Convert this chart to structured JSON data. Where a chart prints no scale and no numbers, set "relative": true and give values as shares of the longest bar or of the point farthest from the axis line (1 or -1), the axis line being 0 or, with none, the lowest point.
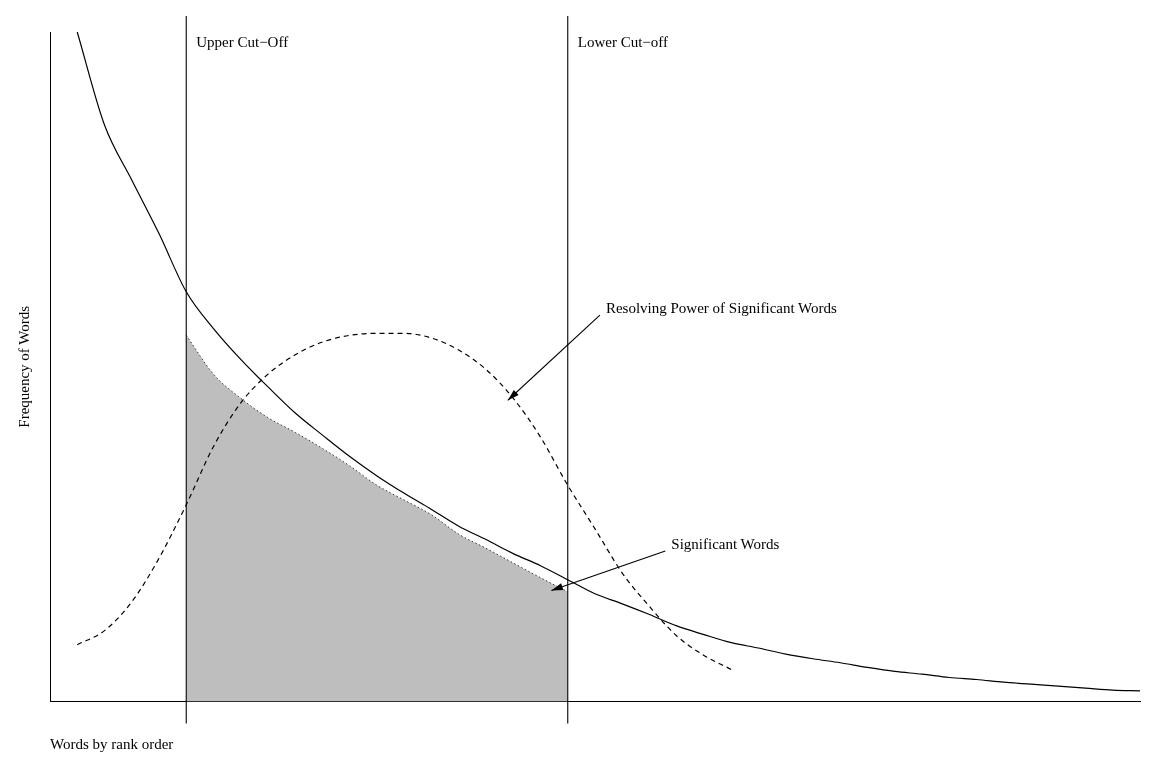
{
  "chart_data": {
    "type": "line",
    "relative": true,
    "xlabel": "Words by rank order",
    "ylabel": "Frequency of Words",
    "grid": false,
    "marker": "none",
    "categories": [
      null,
      null,
      null,
      null,
      null,
      null,
      null,
      null,
      null,
      null,
      null,
      null,
      null,
      null,
      null,
      null,
      null,
      null,
      null,
      null,
      null,
      null,
      null,
      null,
      null,
      null,
      null,
      null,
      null,
      null,
      null,
      null,
      null,
      null,
      null,
      null,
      null,
      null,
      null,
      null,
      null
    ],
    "series": [
      {
        "type": "area",
        "color": "#bebebe",
        "line_style": "dotted",
        "values": [
          null,
          null,
          null,
          null,
          null,
          0.547,
          0.489,
          0.453,
          0.424,
          0.402,
          0.378,
          0.352,
          0.323,
          0.301,
          0.279,
          0.25,
          0.229,
          0.207,
          0.185,
          0.164,
          null,
          null,
          null,
          null,
          null,
          null,
          null,
          null,
          null,
          null,
          null,
          null,
          null,
          null,
          null,
          null,
          null,
          null,
          null,
          null,
          null
        ]
      },
      {
        "color": "#000000",
        "line_style": "solid",
        "values": [
          null,
          1,
          0.861,
          0.779,
          0.699,
          0.612,
          0.557,
          0.511,
          0.47,
          0.431,
          0.398,
          0.366,
          0.337,
          0.311,
          0.287,
          0.262,
          0.242,
          0.221,
          0.203,
          0.182,
          0.161,
          0.146,
          0.13,
          0.113,
          0.1,
          0.088,
          0.08,
          0.071,
          0.064,
          0.058,
          0.051,
          0.045,
          0.041,
          0.036,
          0.033,
          0.029,
          0.026,
          0.023,
          0.02,
          0.017,
          0.016
        ]
      },
      {
        "color": "#000000",
        "line_style": "dashed",
        "values": [
          null,
          0.085,
          0.106,
          0.149,
          0.214,
          0.294,
          0.381,
          0.446,
          0.489,
          0.518,
          0.537,
          0.547,
          0.55,
          0.55,
          0.543,
          0.525,
          0.496,
          0.453,
          0.395,
          0.323,
          0.258,
          0.192,
          0.142,
          0.098,
          0.069,
          0.048,
          null,
          null,
          null,
          null,
          null,
          null,
          null,
          null,
          null,
          null,
          null,
          null,
          null,
          null,
          null
        ]
      }
    ],
    "annotations": [
      "Upper Cut−Off",
      "Lower Cut−off",
      "Resolving Power of Significant Words",
      "Significant Words"
    ]
  }
}
